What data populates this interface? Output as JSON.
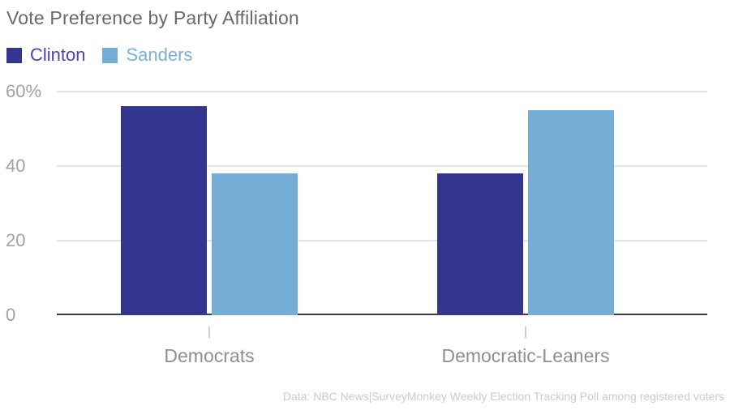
{
  "chart_data": {
    "type": "bar",
    "title": "Vote Preference by Party Affiliation",
    "categories": [
      "Democrats",
      "Democratic-Leaners"
    ],
    "series": [
      {
        "name": "Clinton",
        "color": "#32368f",
        "label_color": "#4a44ae",
        "values": [
          56,
          38
        ]
      },
      {
        "name": "Sanders",
        "color": "#74aed6",
        "label_color": "#79b1d9",
        "values": [
          38,
          55
        ]
      }
    ],
    "ylim": [
      0,
      60
    ],
    "yticks": [
      {
        "value": 0,
        "label": "0"
      },
      {
        "value": 20,
        "label": "20"
      },
      {
        "value": 40,
        "label": "40"
      },
      {
        "value": 60,
        "label": "60%"
      }
    ],
    "grid": true,
    "legend_position": "top-left",
    "source_note": "Data: NBC News|SurveyMonkey Weekly Election Tracking Poll among registered voters"
  },
  "colors": {
    "title": "#696969",
    "y_axis_label": "#a2a2a2",
    "category_label": "#8f8f8f",
    "gridline": "#e3e3e3",
    "baseline": "#3f3f3f",
    "tick": "#d0d0d0",
    "source_note": "#cbcbcb",
    "background": "#ffffff"
  }
}
